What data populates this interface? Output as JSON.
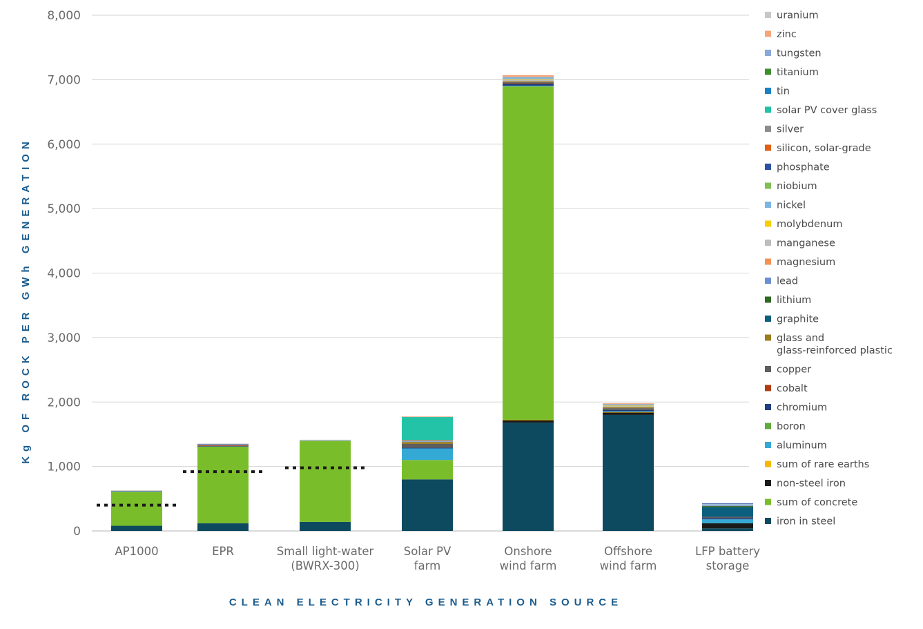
{
  "chart_data": {
    "type": "bar",
    "stacked": true,
    "title": "",
    "xlabel": "CLEAN ELECTRICITY GENERATION SOURCE",
    "ylabel": "Kg OF ROCK PER GWh GENERATION",
    "ylim": [
      0,
      8000
    ],
    "yticks": [
      0,
      1000,
      2000,
      3000,
      4000,
      5000,
      6000,
      7000,
      8000
    ],
    "ytick_labels": [
      "0",
      "1,000",
      "2,000",
      "3,000",
      "4,000",
      "5,000",
      "6,000",
      "7,000",
      "8,000"
    ],
    "grid": "horizontal",
    "legend_position": "right",
    "categories": [
      [
        "AP1000"
      ],
      [
        "EPR"
      ],
      [
        "Small light-water",
        "(BWRX-300)"
      ],
      [
        "Solar PV",
        "farm"
      ],
      [
        "Onshore",
        "wind farm"
      ],
      [
        "Offshore",
        "wind farm"
      ],
      [
        "LFP battery",
        "storage"
      ]
    ],
    "legend_order": [
      "uranium",
      "zinc",
      "tungsten",
      "titanium",
      "tin",
      "solar PV cover glass",
      "silver",
      "silicon, solar-grade",
      "phosphate",
      "niobium",
      "nickel",
      "molybdenum",
      "manganese",
      "magnesium",
      "lead",
      "lithium",
      "graphite",
      "glass and|glass-reinforced plastic",
      "copper",
      "cobalt",
      "chromium",
      "boron",
      "aluminum",
      "sum of rare earths",
      "non-steel iron",
      "sum of concrete",
      "iron in steel"
    ],
    "series": [
      {
        "name": "iron in steel",
        "color": "#0d4a60",
        "values": [
          80,
          120,
          140,
          800,
          1680,
          1800,
          40
        ]
      },
      {
        "name": "non-steel iron",
        "color": "#1a1a1a",
        "values": [
          0,
          0,
          0,
          0,
          40,
          40,
          80
        ]
      },
      {
        "name": "sum of rare earths",
        "color": "#f5b800",
        "values": [
          0,
          0,
          0,
          0,
          5,
          5,
          0
        ]
      },
      {
        "name": "sum of concrete",
        "color": "#7abd2a",
        "values": [
          530,
          1190,
          1260,
          300,
          5170,
          0,
          0
        ]
      },
      {
        "name": "aluminum",
        "color": "#35a9d6",
        "values": [
          0,
          0,
          0,
          180,
          10,
          10,
          60
        ]
      },
      {
        "name": "boron",
        "color": "#5faa3c",
        "values": [
          0,
          0,
          0,
          0,
          0,
          0,
          0
        ]
      },
      {
        "name": "chromium",
        "color": "#1e3f80",
        "values": [
          0,
          10,
          0,
          10,
          30,
          20,
          20
        ]
      },
      {
        "name": "cobalt",
        "color": "#b33b10",
        "values": [
          0,
          15,
          0,
          0,
          5,
          0,
          0
        ]
      },
      {
        "name": "copper",
        "color": "#5e5e5e",
        "values": [
          0,
          0,
          0,
          60,
          20,
          30,
          20
        ]
      },
      {
        "name": "glass and glass-reinforced plastic",
        "color": "#9b7d1e",
        "values": [
          0,
          0,
          0,
          30,
          15,
          15,
          0
        ]
      },
      {
        "name": "graphite",
        "color": "#0c5e7e",
        "values": [
          0,
          0,
          0,
          0,
          0,
          0,
          150
        ]
      },
      {
        "name": "lithium",
        "color": "#2f6b22",
        "values": [
          0,
          0,
          0,
          0,
          0,
          0,
          15
        ]
      },
      {
        "name": "lead",
        "color": "#6c8fd0",
        "values": [
          0,
          0,
          0,
          10,
          0,
          0,
          10
        ]
      },
      {
        "name": "magnesium",
        "color": "#f29257",
        "values": [
          0,
          0,
          0,
          0,
          0,
          0,
          0
        ]
      },
      {
        "name": "manganese",
        "color": "#bdbdbd",
        "values": [
          5,
          5,
          5,
          10,
          30,
          20,
          15
        ]
      },
      {
        "name": "molybdenum",
        "color": "#f7cf00",
        "values": [
          0,
          0,
          0,
          0,
          5,
          5,
          0
        ]
      },
      {
        "name": "nickel",
        "color": "#7cb4e2",
        "values": [
          5,
          5,
          5,
          0,
          30,
          20,
          10
        ]
      },
      {
        "name": "niobium",
        "color": "#80bf55",
        "values": [
          0,
          0,
          0,
          0,
          0,
          0,
          0
        ]
      },
      {
        "name": "phosphate",
        "color": "#2d52a3",
        "values": [
          5,
          5,
          0,
          0,
          0,
          0,
          10
        ]
      },
      {
        "name": "silicon, solar-grade",
        "color": "#e06016",
        "values": [
          0,
          0,
          0,
          5,
          0,
          0,
          0
        ]
      },
      {
        "name": "silver",
        "color": "#8c8c8c",
        "values": [
          0,
          0,
          0,
          5,
          0,
          0,
          0
        ]
      },
      {
        "name": "solar PV cover glass",
        "color": "#23c3a8",
        "values": [
          0,
          0,
          0,
          360,
          0,
          0,
          0
        ]
      },
      {
        "name": "tin",
        "color": "#1a82c2",
        "values": [
          0,
          0,
          0,
          0,
          0,
          0,
          0
        ]
      },
      {
        "name": "titanium",
        "color": "#3e8f2e",
        "values": [
          0,
          0,
          0,
          0,
          0,
          0,
          0
        ]
      },
      {
        "name": "tungsten",
        "color": "#88a8d8",
        "values": [
          0,
          0,
          0,
          0,
          0,
          0,
          0
        ]
      },
      {
        "name": "zinc",
        "color": "#f4a57a",
        "values": [
          0,
          0,
          0,
          5,
          30,
          15,
          0
        ]
      },
      {
        "name": "uranium",
        "color": "#c7c7c7",
        "values": [
          5,
          5,
          5,
          0,
          0,
          0,
          0
        ]
      }
    ],
    "reference_lines": [
      {
        "category": "AP1000",
        "value": 400
      },
      {
        "category": "EPR",
        "value": 920
      },
      {
        "category": "Small light-water (BWRX-300)",
        "value": 980
      }
    ]
  }
}
